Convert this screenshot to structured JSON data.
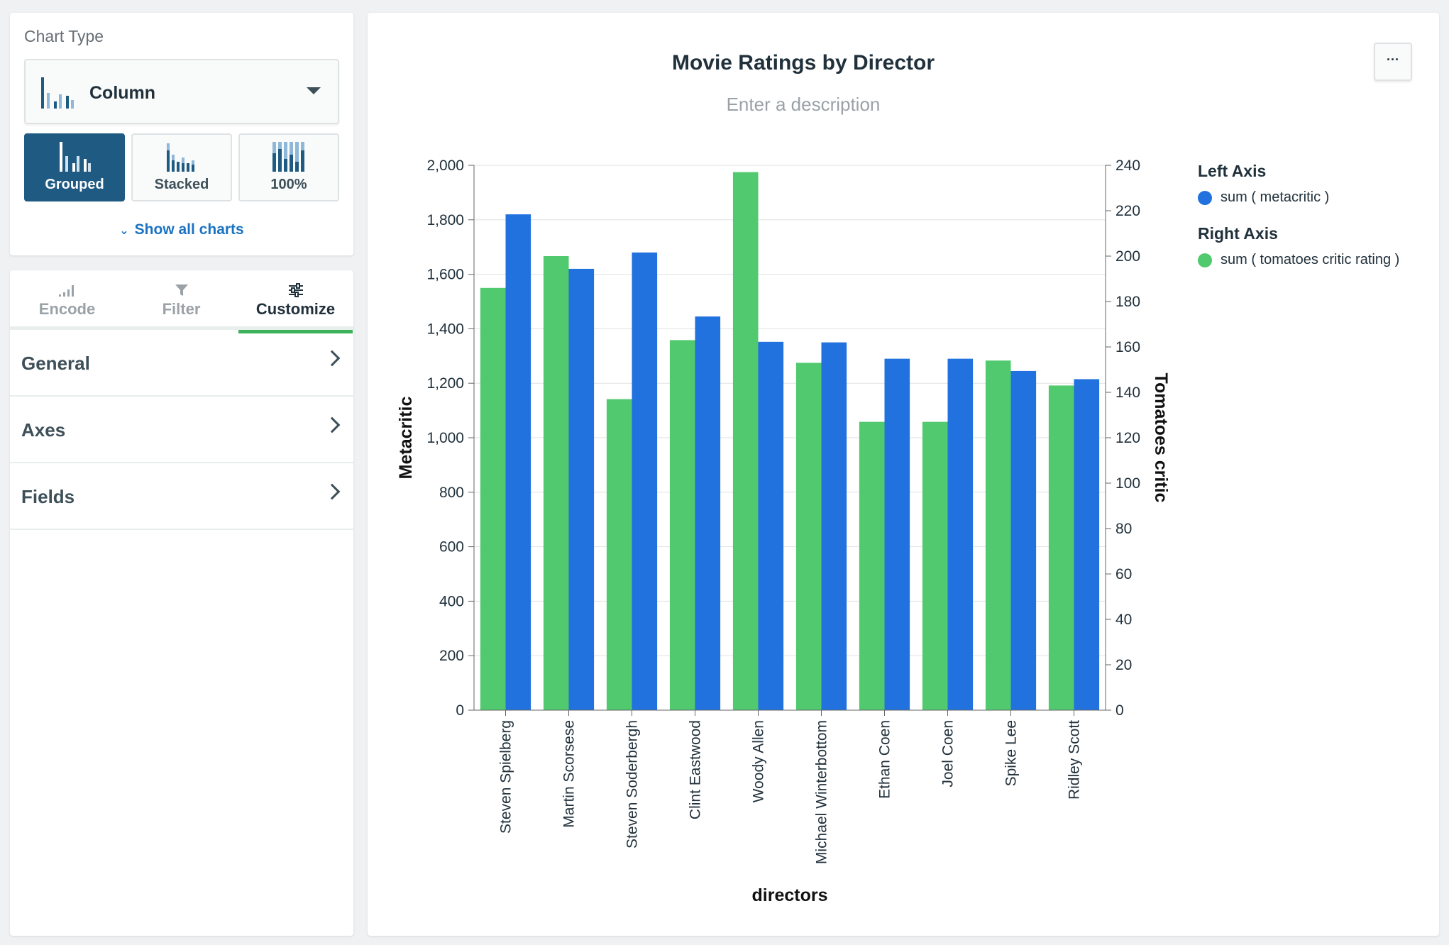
{
  "sidebar": {
    "chart_type_label": "Chart Type",
    "dropdown_value": "Column",
    "variants": [
      {
        "label": "Grouped",
        "active": true
      },
      {
        "label": "Stacked",
        "active": false
      },
      {
        "label": "100%",
        "active": false
      }
    ],
    "show_all_label": "Show all charts",
    "tabs": [
      {
        "label": "Encode",
        "icon": "bar-signal-icon",
        "active": false
      },
      {
        "label": "Filter",
        "icon": "funnel-icon",
        "active": false
      },
      {
        "label": "Customize",
        "icon": "sliders-icon",
        "active": true
      }
    ],
    "sections": [
      "General",
      "Axes",
      "Fields"
    ]
  },
  "header": {
    "more_label": "···"
  },
  "chart": {
    "title": "Movie Ratings by Director",
    "description_placeholder": "Enter a description",
    "legend": {
      "left_axis_heading": "Left Axis",
      "left_series": "sum ( metacritic )",
      "right_axis_heading": "Right Axis",
      "right_series": "sum ( tomatoes critic rating )"
    }
  },
  "colors": {
    "blue": "#2171de",
    "green": "#51c96e",
    "accent": "#3cb35a",
    "active_variant": "#1e5a82",
    "link": "#1a73c2"
  },
  "chart_data": {
    "type": "bar",
    "title": "Movie Ratings by Director",
    "xlabel": "directors",
    "ylabel": "Metacritic",
    "y2label": "Tomatoes critic",
    "categories": [
      "Steven Spielberg",
      "Martin Scorsese",
      "Steven Soderbergh",
      "Clint Eastwood",
      "Woody Allen",
      "Michael Winterbottom",
      "Ethan Coen",
      "Joel Coen",
      "Spike Lee",
      "Ridley Scott"
    ],
    "ylim": [
      0,
      2000
    ],
    "y2lim": [
      0,
      240
    ],
    "yticks": [
      "0",
      "200",
      "400",
      "600",
      "800",
      "1,000",
      "1,200",
      "1,400",
      "1,600",
      "1,800",
      "2,000"
    ],
    "y2ticks": [
      "0",
      "20",
      "40",
      "60",
      "80",
      "100",
      "120",
      "140",
      "160",
      "180",
      "200",
      "220",
      "240"
    ],
    "grid": true,
    "legend_position": "right",
    "series": [
      {
        "name": "sum ( tomatoes critic rating )",
        "axis": "right",
        "color": "#51c96e",
        "values": [
          186,
          200,
          137,
          163,
          237,
          153,
          127,
          127,
          154,
          143
        ]
      },
      {
        "name": "sum ( metacritic )",
        "axis": "left",
        "color": "#2171de",
        "values": [
          1820,
          1620,
          1680,
          1445,
          1352,
          1350,
          1290,
          1290,
          1245,
          1215
        ]
      }
    ]
  }
}
